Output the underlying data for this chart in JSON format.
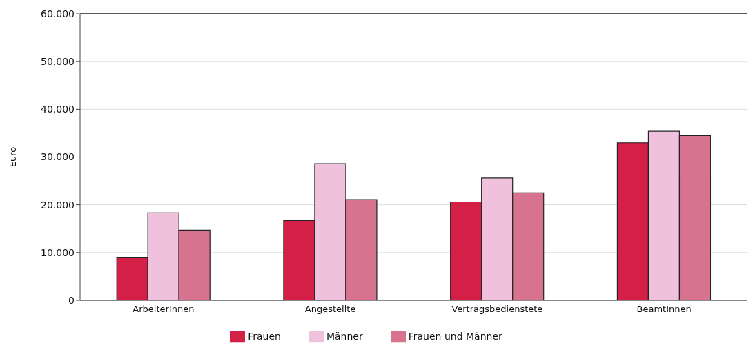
{
  "chart_data": {
    "type": "bar",
    "ylabel": "Euro",
    "categories": [
      "ArbeiterInnen",
      "Angestellte",
      "Vertragsbedienstete",
      "BeamtInnen"
    ],
    "series": [
      {
        "name": "Frauen",
        "color": "#d41f47",
        "values": [
          8900,
          16700,
          20600,
          33000
        ]
      },
      {
        "name": "Männer",
        "color": "#efc1dc",
        "values": [
          18300,
          28600,
          25600,
          35400
        ]
      },
      {
        "name": "Frauen und Männer",
        "color": "#d8738f",
        "values": [
          14700,
          21100,
          22500,
          34500
        ]
      }
    ],
    "ylim": [
      0,
      60000
    ],
    "yticks": [
      {
        "value": 0,
        "label": "0"
      },
      {
        "value": 10000,
        "label": "10.000"
      },
      {
        "value": 20000,
        "label": "20.000"
      },
      {
        "value": 30000,
        "label": "30.000"
      },
      {
        "value": 40000,
        "label": "40.000"
      },
      {
        "value": 50000,
        "label": "50.000"
      },
      {
        "value": 60000,
        "label": "60.000"
      }
    ],
    "grid": "y",
    "legend": "bottom"
  }
}
